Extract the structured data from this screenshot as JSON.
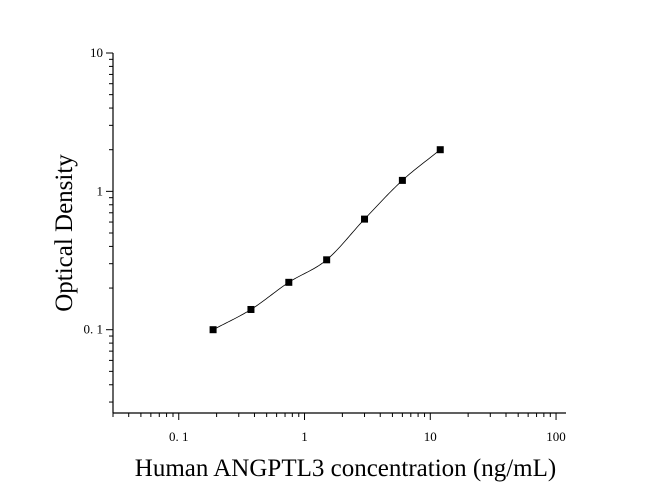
{
  "chart_data": {
    "type": "scatter",
    "title": "",
    "xlabel": "Human ANGPTL3 concentration (ng/mL)",
    "ylabel": "Optical Density",
    "xscale": "log",
    "yscale": "log",
    "xlim": [
      0.03,
      120
    ],
    "ylim": [
      0.025,
      10
    ],
    "x_ticks": [
      0.1,
      1,
      10,
      100
    ],
    "x_tick_labels": [
      "0. 1",
      "1",
      "10",
      "100"
    ],
    "y_ticks": [
      0.1,
      1,
      10
    ],
    "y_tick_labels": [
      "0. 1",
      "1",
      "10"
    ],
    "grid": false,
    "legend": "none",
    "series": [
      {
        "marker": "square",
        "color": "#000000",
        "x": [
          0.1875,
          0.375,
          0.75,
          1.5,
          3,
          6,
          12
        ],
        "y": [
          0.1,
          0.14,
          0.22,
          0.32,
          0.63,
          1.2,
          2.0
        ]
      }
    ],
    "fit_curve": true
  }
}
